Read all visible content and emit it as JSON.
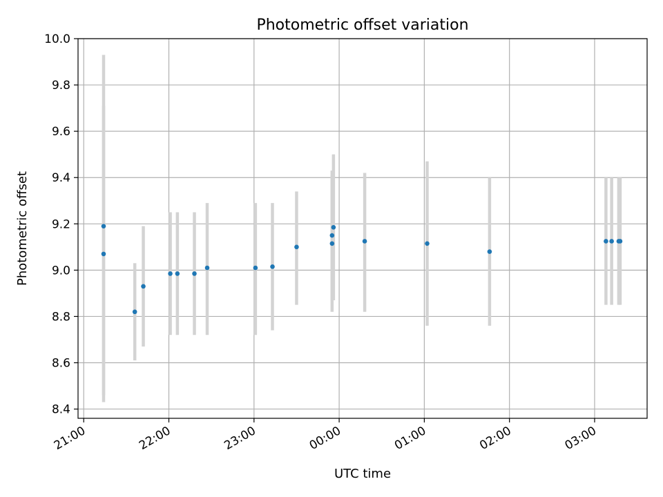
{
  "chart_data": {
    "type": "scatter",
    "title": "Photometric offset variation",
    "xlabel": "UTC time",
    "ylabel": "Photometric offset",
    "x_unit": "UTC time (HH:MM, evening to next morning)",
    "xlim": [
      "20:56",
      "03:37"
    ],
    "ylim": [
      8.36,
      10.0
    ],
    "grid": true,
    "x_ticks": [
      "21:00",
      "22:00",
      "23:00",
      "00:00",
      "01:00",
      "02:00",
      "03:00"
    ],
    "y_ticks": [
      "8.4",
      "8.6",
      "8.8",
      "9.0",
      "9.2",
      "9.4",
      "9.6",
      "9.8",
      "10.0"
    ],
    "colors": {
      "point": "#1f77b4",
      "errorbar": "#d3d3d3",
      "grid": "#b0b0b0"
    },
    "points": [
      {
        "x": "21:14",
        "y": 9.07,
        "ylow": 8.43,
        "yhigh": 9.71
      },
      {
        "x": "21:14",
        "y": 9.19,
        "ylow": 8.46,
        "yhigh": 9.93
      },
      {
        "x": "21:36",
        "y": 8.82,
        "ylow": 8.61,
        "yhigh": 9.03
      },
      {
        "x": "21:42",
        "y": 8.93,
        "ylow": 8.67,
        "yhigh": 9.19
      },
      {
        "x": "22:01",
        "y": 8.985,
        "ylow": 8.72,
        "yhigh": 9.25
      },
      {
        "x": "22:06",
        "y": 8.985,
        "ylow": 8.72,
        "yhigh": 9.25
      },
      {
        "x": "22:18",
        "y": 8.985,
        "ylow": 8.72,
        "yhigh": 9.25
      },
      {
        "x": "22:27",
        "y": 9.01,
        "ylow": 8.72,
        "yhigh": 9.29
      },
      {
        "x": "23:01",
        "y": 9.01,
        "ylow": 8.72,
        "yhigh": 9.29
      },
      {
        "x": "23:13",
        "y": 9.015,
        "ylow": 8.74,
        "yhigh": 9.29
      },
      {
        "x": "23:30",
        "y": 9.1,
        "ylow": 8.85,
        "yhigh": 9.34
      },
      {
        "x": "23:55",
        "y": 9.115,
        "ylow": 8.82,
        "yhigh": 9.41
      },
      {
        "x": "23:55",
        "y": 9.15,
        "ylow": 8.87,
        "yhigh": 9.43
      },
      {
        "x": "23:56",
        "y": 9.185,
        "ylow": 8.87,
        "yhigh": 9.5
      },
      {
        "x": "00:18",
        "y": 9.125,
        "ylow": 8.82,
        "yhigh": 9.42
      },
      {
        "x": "01:02",
        "y": 9.115,
        "ylow": 8.76,
        "yhigh": 9.47
      },
      {
        "x": "01:46",
        "y": 9.08,
        "ylow": 8.76,
        "yhigh": 9.4
      },
      {
        "x": "03:08",
        "y": 9.125,
        "ylow": 8.85,
        "yhigh": 9.4
      },
      {
        "x": "03:12",
        "y": 9.125,
        "ylow": 8.85,
        "yhigh": 9.4
      },
      {
        "x": "03:17",
        "y": 9.125,
        "ylow": 8.85,
        "yhigh": 9.4
      },
      {
        "x": "03:18",
        "y": 9.125,
        "ylow": 8.85,
        "yhigh": 9.4
      }
    ]
  }
}
